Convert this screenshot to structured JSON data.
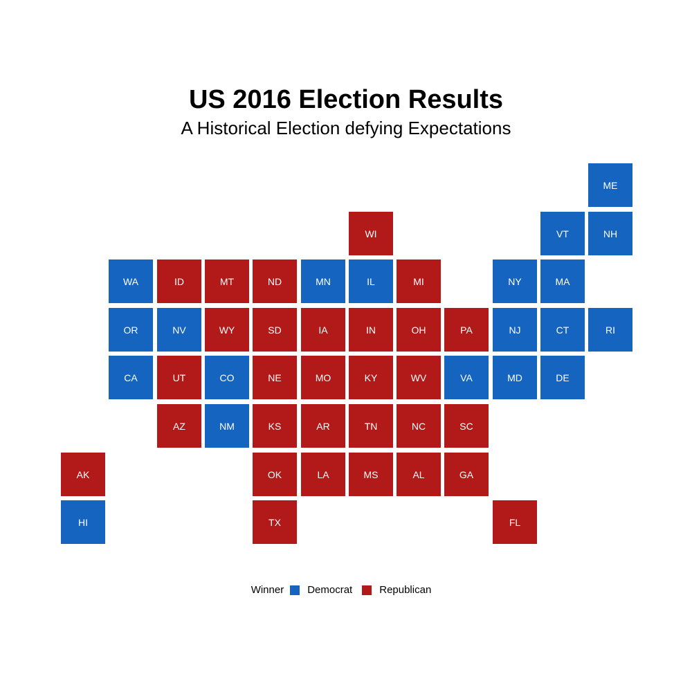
{
  "title": "US 2016 Election Results",
  "subtitle": "A Historical Election defying Expectations",
  "legend": {
    "title": "Winner",
    "entries": [
      {
        "key": "D",
        "label": "Democrat",
        "color": "#1565c0"
      },
      {
        "key": "R",
        "label": "Republican",
        "color": "#b21a1a"
      }
    ]
  },
  "colors": {
    "D": "#1565c0",
    "R": "#b21a1a"
  },
  "states": [
    {
      "abbr": "ME",
      "winner": "D",
      "col": 11,
      "row": 0
    },
    {
      "abbr": "WI",
      "winner": "R",
      "col": 6,
      "row": 1
    },
    {
      "abbr": "VT",
      "winner": "D",
      "col": 10,
      "row": 1
    },
    {
      "abbr": "NH",
      "winner": "D",
      "col": 11,
      "row": 1
    },
    {
      "abbr": "WA",
      "winner": "D",
      "col": 1,
      "row": 2
    },
    {
      "abbr": "ID",
      "winner": "R",
      "col": 2,
      "row": 2
    },
    {
      "abbr": "MT",
      "winner": "R",
      "col": 3,
      "row": 2
    },
    {
      "abbr": "ND",
      "winner": "R",
      "col": 4,
      "row": 2
    },
    {
      "abbr": "MN",
      "winner": "D",
      "col": 5,
      "row": 2
    },
    {
      "abbr": "IL",
      "winner": "D",
      "col": 6,
      "row": 2
    },
    {
      "abbr": "MI",
      "winner": "R",
      "col": 7,
      "row": 2
    },
    {
      "abbr": "NY",
      "winner": "D",
      "col": 9,
      "row": 2
    },
    {
      "abbr": "MA",
      "winner": "D",
      "col": 10,
      "row": 2
    },
    {
      "abbr": "OR",
      "winner": "D",
      "col": 1,
      "row": 3
    },
    {
      "abbr": "NV",
      "winner": "D",
      "col": 2,
      "row": 3
    },
    {
      "abbr": "WY",
      "winner": "R",
      "col": 3,
      "row": 3
    },
    {
      "abbr": "SD",
      "winner": "R",
      "col": 4,
      "row": 3
    },
    {
      "abbr": "IA",
      "winner": "R",
      "col": 5,
      "row": 3
    },
    {
      "abbr": "IN",
      "winner": "R",
      "col": 6,
      "row": 3
    },
    {
      "abbr": "OH",
      "winner": "R",
      "col": 7,
      "row": 3
    },
    {
      "abbr": "PA",
      "winner": "R",
      "col": 8,
      "row": 3
    },
    {
      "abbr": "NJ",
      "winner": "D",
      "col": 9,
      "row": 3
    },
    {
      "abbr": "CT",
      "winner": "D",
      "col": 10,
      "row": 3
    },
    {
      "abbr": "RI",
      "winner": "D",
      "col": 11,
      "row": 3
    },
    {
      "abbr": "CA",
      "winner": "D",
      "col": 1,
      "row": 4
    },
    {
      "abbr": "UT",
      "winner": "R",
      "col": 2,
      "row": 4
    },
    {
      "abbr": "CO",
      "winner": "D",
      "col": 3,
      "row": 4
    },
    {
      "abbr": "NE",
      "winner": "R",
      "col": 4,
      "row": 4
    },
    {
      "abbr": "MO",
      "winner": "R",
      "col": 5,
      "row": 4
    },
    {
      "abbr": "KY",
      "winner": "R",
      "col": 6,
      "row": 4
    },
    {
      "abbr": "WV",
      "winner": "R",
      "col": 7,
      "row": 4
    },
    {
      "abbr": "VA",
      "winner": "D",
      "col": 8,
      "row": 4
    },
    {
      "abbr": "MD",
      "winner": "D",
      "col": 9,
      "row": 4
    },
    {
      "abbr": "DE",
      "winner": "D",
      "col": 10,
      "row": 4
    },
    {
      "abbr": "AZ",
      "winner": "R",
      "col": 2,
      "row": 5
    },
    {
      "abbr": "NM",
      "winner": "D",
      "col": 3,
      "row": 5
    },
    {
      "abbr": "KS",
      "winner": "R",
      "col": 4,
      "row": 5
    },
    {
      "abbr": "AR",
      "winner": "R",
      "col": 5,
      "row": 5
    },
    {
      "abbr": "TN",
      "winner": "R",
      "col": 6,
      "row": 5
    },
    {
      "abbr": "NC",
      "winner": "R",
      "col": 7,
      "row": 5
    },
    {
      "abbr": "SC",
      "winner": "R",
      "col": 8,
      "row": 5
    },
    {
      "abbr": "AK",
      "winner": "R",
      "col": 0,
      "row": 6
    },
    {
      "abbr": "OK",
      "winner": "R",
      "col": 4,
      "row": 6
    },
    {
      "abbr": "LA",
      "winner": "R",
      "col": 5,
      "row": 6
    },
    {
      "abbr": "MS",
      "winner": "R",
      "col": 6,
      "row": 6
    },
    {
      "abbr": "AL",
      "winner": "R",
      "col": 7,
      "row": 6
    },
    {
      "abbr": "GA",
      "winner": "R",
      "col": 8,
      "row": 6
    },
    {
      "abbr": "HI",
      "winner": "D",
      "col": 0,
      "row": 7
    },
    {
      "abbr": "TX",
      "winner": "R",
      "col": 4,
      "row": 7
    },
    {
      "abbr": "FL",
      "winner": "R",
      "col": 9,
      "row": 7
    }
  ]
}
